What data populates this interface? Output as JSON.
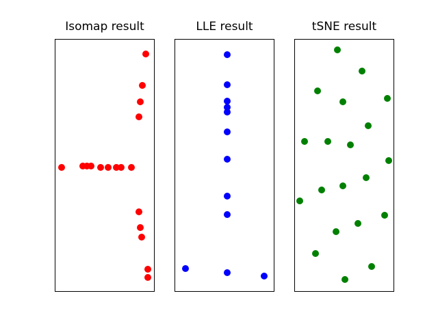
{
  "figure": {
    "background": "#ffffff",
    "frame_color": "#000000",
    "title_color": "#000000"
  },
  "chart_data": [
    {
      "type": "scatter",
      "title": "Isomap result",
      "color": "#ff0000",
      "marker": "circle",
      "legend": "none",
      "grid": false,
      "axis": {
        "ticks": false,
        "tick_labels": false,
        "xlabel": "",
        "ylabel": "",
        "frame": true
      },
      "coord_note": "points are [x,y] fractions of the plot box; origin top-left, y increases downward",
      "points": [
        [
          0.918,
          0.056
        ],
        [
          0.879,
          0.182
        ],
        [
          0.861,
          0.247
        ],
        [
          0.849,
          0.307
        ],
        [
          0.062,
          0.507
        ],
        [
          0.281,
          0.503
        ],
        [
          0.322,
          0.504
        ],
        [
          0.363,
          0.504
        ],
        [
          0.459,
          0.507
        ],
        [
          0.534,
          0.507
        ],
        [
          0.616,
          0.507
        ],
        [
          0.664,
          0.507
        ],
        [
          0.774,
          0.508
        ],
        [
          0.849,
          0.685
        ],
        [
          0.863,
          0.748
        ],
        [
          0.872,
          0.785
        ],
        [
          0.936,
          0.913
        ],
        [
          0.936,
          0.947
        ]
      ]
    },
    {
      "type": "scatter",
      "title": "LLE result",
      "color": "#0000ff",
      "marker": "circle",
      "legend": "none",
      "grid": false,
      "axis": {
        "ticks": false,
        "tick_labels": false,
        "xlabel": "",
        "ylabel": "",
        "frame": true
      },
      "coord_note": "points are [x,y] fractions of the plot box; origin top-left, y increases downward",
      "points": [
        [
          0.525,
          0.059
        ],
        [
          0.531,
          0.178
        ],
        [
          0.525,
          0.244
        ],
        [
          0.525,
          0.27
        ],
        [
          0.525,
          0.288
        ],
        [
          0.531,
          0.367
        ],
        [
          0.525,
          0.475
        ],
        [
          0.525,
          0.621
        ],
        [
          0.525,
          0.696
        ],
        [
          0.107,
          0.91
        ],
        [
          0.525,
          0.926
        ],
        [
          0.901,
          0.94
        ]
      ]
    },
    {
      "type": "scatter",
      "title": "tSNE result",
      "color": "#008000",
      "marker": "circle",
      "legend": "none",
      "grid": false,
      "axis": {
        "ticks": false,
        "tick_labels": false,
        "xlabel": "",
        "ylabel": "",
        "frame": true
      },
      "coord_note": "points are [x,y] fractions of the plot box; origin top-left, y increases downward",
      "points": [
        [
          0.428,
          0.042
        ],
        [
          0.684,
          0.124
        ],
        [
          0.227,
          0.205
        ],
        [
          0.935,
          0.234
        ],
        [
          0.483,
          0.248
        ],
        [
          0.745,
          0.342
        ],
        [
          0.095,
          0.406
        ],
        [
          0.334,
          0.405
        ],
        [
          0.562,
          0.419
        ],
        [
          0.953,
          0.48
        ],
        [
          0.725,
          0.55
        ],
        [
          0.485,
          0.582
        ],
        [
          0.268,
          0.597
        ],
        [
          0.049,
          0.642
        ],
        [
          0.908,
          0.699
        ],
        [
          0.638,
          0.731
        ],
        [
          0.414,
          0.764
        ],
        [
          0.209,
          0.851
        ],
        [
          0.779,
          0.901
        ],
        [
          0.505,
          0.953
        ]
      ]
    }
  ]
}
